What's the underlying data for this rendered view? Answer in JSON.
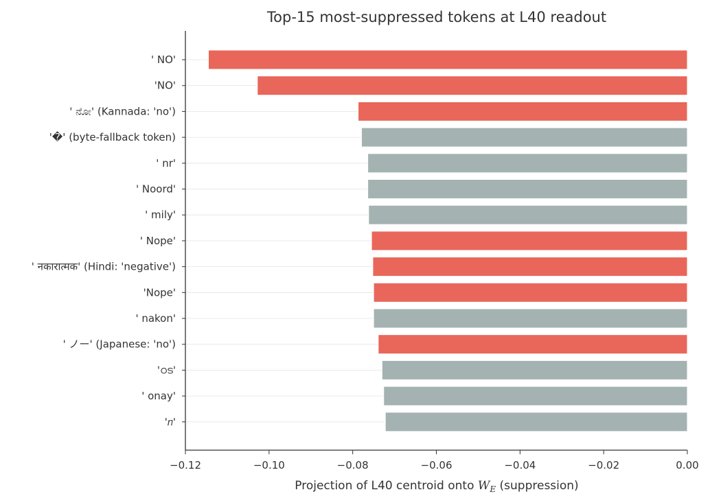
{
  "chart_data": {
    "type": "bar",
    "orientation": "horizontal",
    "title": "Top-15 most-suppressed tokens at L40 readout",
    "xlabel": "Projection of L40 centroid onto W_E (suppression)",
    "xlabel_parts": {
      "before": "Projection of L40 centroid onto ",
      "var": "W",
      "sub": "E",
      "after": " (suppression)"
    },
    "ylabel": "",
    "xlim": [
      -0.12,
      0.0
    ],
    "xticks": [
      -0.12,
      -0.1,
      -0.08,
      -0.06,
      -0.04,
      -0.02,
      0.0
    ],
    "xtick_labels": [
      "−0.12",
      "−0.10",
      "−0.08",
      "−0.06",
      "−0.04",
      "−0.02",
      "0.00"
    ],
    "grid": "horizontal faint lines at each category",
    "colors": {
      "highlight": "#e8675a",
      "other": "#a4b3b1"
    },
    "bars": [
      {
        "label": "' NO'",
        "value": -0.1145,
        "group": "highlight"
      },
      {
        "label": "'NO'",
        "value": -0.1028,
        "group": "highlight"
      },
      {
        "label": "' ನೋ' (Kannada: 'no')",
        "value": -0.0787,
        "group": "highlight"
      },
      {
        "label": "'�' (byte-fallback token)",
        "value": -0.0779,
        "group": "other"
      },
      {
        "label": "' nr'",
        "value": -0.0764,
        "group": "other"
      },
      {
        "label": "' Noord'",
        "value": -0.0764,
        "group": "other"
      },
      {
        "label": "' mily'",
        "value": -0.0762,
        "group": "other"
      },
      {
        "label": "' Nope'",
        "value": -0.0755,
        "group": "highlight"
      },
      {
        "label": "' नकारात्मक' (Hindi: 'negative')",
        "value": -0.0752,
        "group": "highlight"
      },
      {
        "label": "'Nope'",
        "value": -0.075,
        "group": "highlight"
      },
      {
        "label": "' nakon'",
        "value": -0.075,
        "group": "other"
      },
      {
        "label": "' ノー' (Japanese: 'no')",
        "value": -0.0739,
        "group": "highlight"
      },
      {
        "label": "'ഠട'",
        "value": -0.073,
        "group": "other"
      },
      {
        "label": "' onay'",
        "value": -0.0726,
        "group": "other"
      },
      {
        "label": "'𝑛'",
        "value": -0.0722,
        "group": "other"
      }
    ]
  }
}
